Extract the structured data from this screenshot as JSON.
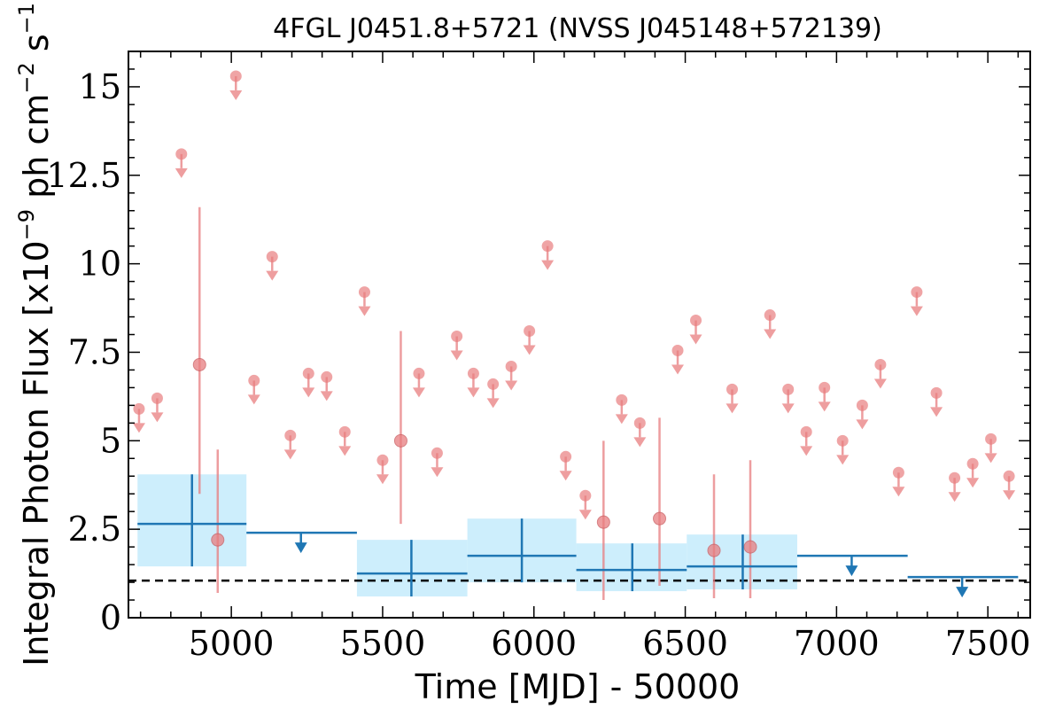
{
  "chart_data": {
    "type": "scatter",
    "title": "4FGL J0451.8+5721 (NVSS J045148+572139)",
    "xlabel": "Time [MJD] - 50000",
    "ylabel_main": "Integral Photon Flux [x10",
    "ylabel_exp1": "−9",
    "ylabel_mid": " ph cm",
    "ylabel_exp2": "−2",
    "ylabel_tail": " s",
    "ylabel_exp3": "−1",
    "ylabel_close": "]",
    "xlim": [
      4660,
      7640
    ],
    "ylim": [
      0,
      16
    ],
    "x_ticks": [
      5000,
      5500,
      6000,
      6500,
      7000,
      7500
    ],
    "x_tick_labels": [
      "5000",
      "5500",
      "6000",
      "6500",
      "7000",
      "7500"
    ],
    "y_ticks": [
      0,
      2.5,
      5,
      7.5,
      10,
      12.5,
      15
    ],
    "y_tick_labels": [
      "0",
      "2.5",
      "5",
      "7.5",
      "10",
      "12.5",
      "15"
    ],
    "reference_line_y": 1.05,
    "colors": {
      "monthly": "#e87d7f",
      "yearly": "#1f77b4",
      "yearly_band": "#cdeefc",
      "reference": "#000000"
    },
    "series": [
      {
        "kind": "monthly_upper_limits",
        "points": [
          {
            "x": 4695,
            "y": 5.9
          },
          {
            "x": 4755,
            "y": 6.2
          },
          {
            "x": 4835,
            "y": 13.1
          },
          {
            "x": 5015,
            "y": 15.3
          },
          {
            "x": 5075,
            "y": 6.7
          },
          {
            "x": 5135,
            "y": 10.2
          },
          {
            "x": 5195,
            "y": 5.15
          },
          {
            "x": 5255,
            "y": 6.9
          },
          {
            "x": 5315,
            "y": 6.8
          },
          {
            "x": 5375,
            "y": 5.25
          },
          {
            "x": 5440,
            "y": 9.2
          },
          {
            "x": 5500,
            "y": 4.45
          },
          {
            "x": 5620,
            "y": 6.9
          },
          {
            "x": 5680,
            "y": 4.65
          },
          {
            "x": 5745,
            "y": 7.95
          },
          {
            "x": 5800,
            "y": 6.9
          },
          {
            "x": 5865,
            "y": 6.6
          },
          {
            "x": 5925,
            "y": 7.1
          },
          {
            "x": 5985,
            "y": 8.1
          },
          {
            "x": 6045,
            "y": 10.5
          },
          {
            "x": 6105,
            "y": 4.55
          },
          {
            "x": 6170,
            "y": 3.45
          },
          {
            "x": 6290,
            "y": 6.15
          },
          {
            "x": 6350,
            "y": 5.5
          },
          {
            "x": 6475,
            "y": 7.55
          },
          {
            "x": 6535,
            "y": 8.4
          },
          {
            "x": 6655,
            "y": 6.45
          },
          {
            "x": 6780,
            "y": 8.55
          },
          {
            "x": 6840,
            "y": 6.45
          },
          {
            "x": 6900,
            "y": 5.25
          },
          {
            "x": 6960,
            "y": 6.5
          },
          {
            "x": 7020,
            "y": 5.0
          },
          {
            "x": 7085,
            "y": 6.0
          },
          {
            "x": 7145,
            "y": 7.15
          },
          {
            "x": 7205,
            "y": 4.1
          },
          {
            "x": 7265,
            "y": 9.2
          },
          {
            "x": 7330,
            "y": 6.35
          },
          {
            "x": 7390,
            "y": 3.95
          },
          {
            "x": 7450,
            "y": 4.35
          },
          {
            "x": 7510,
            "y": 5.05
          },
          {
            "x": 7570,
            "y": 4.0
          }
        ]
      },
      {
        "kind": "monthly_detections",
        "points": [
          {
            "x": 4895,
            "y": 7.15,
            "ylo": 3.5,
            "yhi": 11.6
          },
          {
            "x": 4955,
            "y": 2.2,
            "ylo": 0.7,
            "yhi": 4.75
          },
          {
            "x": 5560,
            "y": 5.0,
            "ylo": 2.65,
            "yhi": 8.1
          },
          {
            "x": 6230,
            "y": 2.7,
            "ylo": 0.5,
            "yhi": 5.0
          },
          {
            "x": 6415,
            "y": 2.8,
            "ylo": 0.9,
            "yhi": 5.65
          },
          {
            "x": 6595,
            "y": 1.9,
            "ylo": 0.55,
            "yhi": 4.05
          },
          {
            "x": 6715,
            "y": 2.0,
            "ylo": 0.55,
            "yhi": 4.45
          }
        ]
      },
      {
        "kind": "yearly_detections",
        "points": [
          {
            "x": 4870,
            "xlo": 4690,
            "xhi": 5050,
            "y": 2.65,
            "ylo": 1.45,
            "yhi": 4.05
          },
          {
            "x": 5595,
            "xlo": 5415,
            "xhi": 5780,
            "y": 1.25,
            "ylo": 0.6,
            "yhi": 2.2
          },
          {
            "x": 5960,
            "xlo": 5780,
            "xhi": 6140,
            "y": 1.75,
            "ylo": 1.0,
            "yhi": 2.8
          },
          {
            "x": 6325,
            "xlo": 6140,
            "xhi": 6505,
            "y": 1.35,
            "ylo": 0.75,
            "yhi": 2.1
          },
          {
            "x": 6690,
            "xlo": 6505,
            "xhi": 6870,
            "y": 1.45,
            "ylo": 0.8,
            "yhi": 2.35
          }
        ]
      },
      {
        "kind": "yearly_upper_limits",
        "points": [
          {
            "x": 5230,
            "xlo": 5050,
            "xhi": 5415,
            "y": 2.4
          },
          {
            "x": 7050,
            "xlo": 6870,
            "xhi": 7235,
            "y": 1.75
          },
          {
            "x": 7415,
            "xlo": 7235,
            "xhi": 7600,
            "y": 1.15
          }
        ]
      }
    ]
  }
}
